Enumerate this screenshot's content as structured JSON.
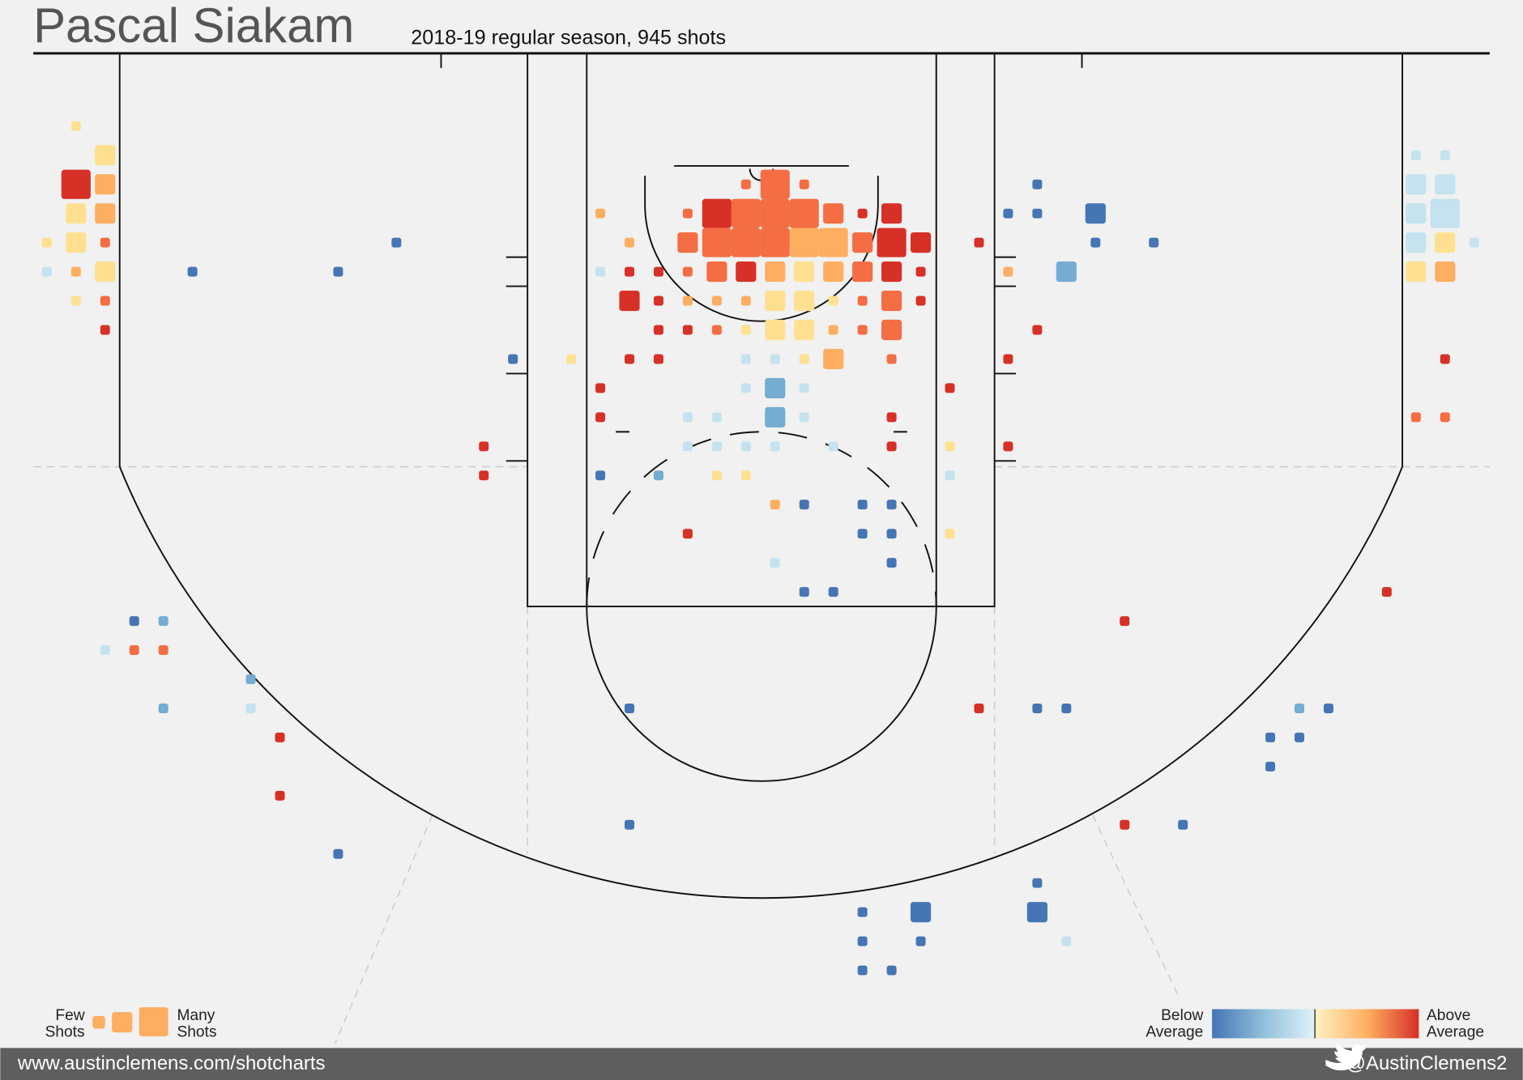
{
  "chart_data": {
    "type": "shotchart",
    "title": "Pascal Siakam",
    "subtitle": "2018-19 regular season, 945 shots",
    "legend": {
      "size_low": [
        "Few",
        "Shots"
      ],
      "size_high": [
        "Many",
        "Shots"
      ],
      "color_low": [
        "Below",
        "Average"
      ],
      "color_high": [
        "Above",
        "Average"
      ]
    },
    "footer": {
      "site": "www.austinclemens.com/shotcharts",
      "twitter": "@AustinClemens2"
    },
    "shots": [
      {
        "x": 1.5,
        "y": 2.5,
        "size": 1,
        "color": "#fee090"
      },
      {
        "x": 2.5,
        "y": 3.5,
        "size": 4,
        "color": "#fee090"
      },
      {
        "x": 1.5,
        "y": 4.5,
        "size": 8,
        "color": "#d73027"
      },
      {
        "x": 2.5,
        "y": 4.5,
        "size": 4,
        "color": "#fdae61"
      },
      {
        "x": 1.5,
        "y": 5.5,
        "size": 4,
        "color": "#fee090"
      },
      {
        "x": 2.5,
        "y": 5.5,
        "size": 4,
        "color": "#fdae61"
      },
      {
        "x": 0.5,
        "y": 6.5,
        "size": 1,
        "color": "#fee090"
      },
      {
        "x": 1.5,
        "y": 6.5,
        "size": 4,
        "color": "#fee090"
      },
      {
        "x": 2.5,
        "y": 6.5,
        "size": 1,
        "color": "#f46d43"
      },
      {
        "x": 0.5,
        "y": 7.5,
        "size": 1,
        "color": "#c4e2ef"
      },
      {
        "x": 1.5,
        "y": 7.5,
        "size": 1,
        "color": "#fdae61"
      },
      {
        "x": 2.5,
        "y": 7.5,
        "size": 4,
        "color": "#fee090"
      },
      {
        "x": 1.5,
        "y": 8.5,
        "size": 1,
        "color": "#fee090"
      },
      {
        "x": 2.5,
        "y": 8.5,
        "size": 1,
        "color": "#f46d43"
      },
      {
        "x": 2.5,
        "y": 9.5,
        "size": 1,
        "color": "#d73027"
      },
      {
        "x": 5.5,
        "y": 7.5,
        "size": 1,
        "color": "#4575b4"
      },
      {
        "x": 10.5,
        "y": 7.5,
        "size": 1,
        "color": "#4575b4"
      },
      {
        "x": 12.5,
        "y": 6.5,
        "size": 1,
        "color": "#4575b4"
      },
      {
        "x": 24.5,
        "y": 4.5,
        "size": 1,
        "color": "#f46d43"
      },
      {
        "x": 25.5,
        "y": 4.5,
        "size": 8,
        "color": "#f46d43"
      },
      {
        "x": 26.5,
        "y": 4.5,
        "size": 1,
        "color": "#f46d43"
      },
      {
        "x": 19.5,
        "y": 5.5,
        "size": 1,
        "color": "#fdae61"
      },
      {
        "x": 22.5,
        "y": 5.5,
        "size": 1,
        "color": "#f46d43"
      },
      {
        "x": 23.5,
        "y": 5.5,
        "size": 8,
        "color": "#d73027"
      },
      {
        "x": 24.5,
        "y": 5.5,
        "size": 8,
        "color": "#f46d43"
      },
      {
        "x": 25.5,
        "y": 5.5,
        "size": 8,
        "color": "#f46d43"
      },
      {
        "x": 26.5,
        "y": 5.5,
        "size": 8,
        "color": "#f46d43"
      },
      {
        "x": 27.5,
        "y": 5.5,
        "size": 4,
        "color": "#f46d43"
      },
      {
        "x": 28.5,
        "y": 5.5,
        "size": 1,
        "color": "#d73027"
      },
      {
        "x": 29.5,
        "y": 5.5,
        "size": 4,
        "color": "#d73027"
      },
      {
        "x": 20.5,
        "y": 6.5,
        "size": 1,
        "color": "#fdae61"
      },
      {
        "x": 22.5,
        "y": 6.5,
        "size": 4,
        "color": "#f46d43"
      },
      {
        "x": 23.5,
        "y": 6.5,
        "size": 8,
        "color": "#f46d43"
      },
      {
        "x": 24.5,
        "y": 6.5,
        "size": 8,
        "color": "#f46d43"
      },
      {
        "x": 25.5,
        "y": 6.5,
        "size": 8,
        "color": "#f46d43"
      },
      {
        "x": 26.5,
        "y": 6.5,
        "size": 8,
        "color": "#fdae61"
      },
      {
        "x": 27.5,
        "y": 6.5,
        "size": 8,
        "color": "#fdae61"
      },
      {
        "x": 28.5,
        "y": 6.5,
        "size": 4,
        "color": "#f46d43"
      },
      {
        "x": 29.5,
        "y": 6.5,
        "size": 8,
        "color": "#d73027"
      },
      {
        "x": 30.5,
        "y": 6.5,
        "size": 4,
        "color": "#d73027"
      },
      {
        "x": 32.5,
        "y": 6.5,
        "size": 1,
        "color": "#d73027"
      },
      {
        "x": 19.5,
        "y": 7.5,
        "size": 1,
        "color": "#c4e2ef"
      },
      {
        "x": 20.5,
        "y": 7.5,
        "size": 1,
        "color": "#d73027"
      },
      {
        "x": 21.5,
        "y": 7.5,
        "size": 1,
        "color": "#d73027"
      },
      {
        "x": 22.5,
        "y": 7.5,
        "size": 1,
        "color": "#f46d43"
      },
      {
        "x": 23.5,
        "y": 7.5,
        "size": 4,
        "color": "#f46d43"
      },
      {
        "x": 24.5,
        "y": 7.5,
        "size": 4,
        "color": "#d73027"
      },
      {
        "x": 25.5,
        "y": 7.5,
        "size": 4,
        "color": "#fdae61"
      },
      {
        "x": 26.5,
        "y": 7.5,
        "size": 4,
        "color": "#fee090"
      },
      {
        "x": 27.5,
        "y": 7.5,
        "size": 4,
        "color": "#fdae61"
      },
      {
        "x": 28.5,
        "y": 7.5,
        "size": 4,
        "color": "#f46d43"
      },
      {
        "x": 29.5,
        "y": 7.5,
        "size": 4,
        "color": "#d73027"
      },
      {
        "x": 30.5,
        "y": 7.5,
        "size": 1,
        "color": "#d73027"
      },
      {
        "x": 33.5,
        "y": 7.5,
        "size": 1,
        "color": "#fdae61"
      },
      {
        "x": 20.5,
        "y": 8.5,
        "size": 4,
        "color": "#d73027"
      },
      {
        "x": 21.5,
        "y": 8.5,
        "size": 1,
        "color": "#d73027"
      },
      {
        "x": 22.5,
        "y": 8.5,
        "size": 1,
        "color": "#fdae61"
      },
      {
        "x": 23.5,
        "y": 8.5,
        "size": 1,
        "color": "#fdae61"
      },
      {
        "x": 24.5,
        "y": 8.5,
        "size": 1,
        "color": "#fdae61"
      },
      {
        "x": 25.5,
        "y": 8.5,
        "size": 4,
        "color": "#fee090"
      },
      {
        "x": 26.5,
        "y": 8.5,
        "size": 4,
        "color": "#fee090"
      },
      {
        "x": 27.5,
        "y": 8.5,
        "size": 1,
        "color": "#fee090"
      },
      {
        "x": 28.5,
        "y": 8.5,
        "size": 1,
        "color": "#f46d43"
      },
      {
        "x": 29.5,
        "y": 8.5,
        "size": 4,
        "color": "#f46d43"
      },
      {
        "x": 30.5,
        "y": 8.5,
        "size": 1,
        "color": "#d73027"
      },
      {
        "x": 21.5,
        "y": 9.5,
        "size": 1,
        "color": "#d73027"
      },
      {
        "x": 22.5,
        "y": 9.5,
        "size": 1,
        "color": "#d73027"
      },
      {
        "x": 23.5,
        "y": 9.5,
        "size": 1,
        "color": "#f46d43"
      },
      {
        "x": 24.5,
        "y": 9.5,
        "size": 1,
        "color": "#fee090"
      },
      {
        "x": 25.5,
        "y": 9.5,
        "size": 4,
        "color": "#fee090"
      },
      {
        "x": 26.5,
        "y": 9.5,
        "size": 4,
        "color": "#fee090"
      },
      {
        "x": 27.5,
        "y": 9.5,
        "size": 1,
        "color": "#fdae61"
      },
      {
        "x": 28.5,
        "y": 9.5,
        "size": 1,
        "color": "#f46d43"
      },
      {
        "x": 29.5,
        "y": 9.5,
        "size": 4,
        "color": "#f46d43"
      },
      {
        "x": 34.5,
        "y": 9.5,
        "size": 1,
        "color": "#d73027"
      },
      {
        "x": 16.5,
        "y": 10.5,
        "size": 1,
        "color": "#4575b4"
      },
      {
        "x": 18.5,
        "y": 10.5,
        "size": 1,
        "color": "#fee090"
      },
      {
        "x": 20.5,
        "y": 10.5,
        "size": 1,
        "color": "#d73027"
      },
      {
        "x": 21.5,
        "y": 10.5,
        "size": 1,
        "color": "#d73027"
      },
      {
        "x": 24.5,
        "y": 10.5,
        "size": 1,
        "color": "#c4e2ef"
      },
      {
        "x": 25.5,
        "y": 10.5,
        "size": 1,
        "color": "#c4e2ef"
      },
      {
        "x": 26.5,
        "y": 10.5,
        "size": 1,
        "color": "#fee090"
      },
      {
        "x": 27.5,
        "y": 10.5,
        "size": 4,
        "color": "#fdae61"
      },
      {
        "x": 29.5,
        "y": 10.5,
        "size": 1,
        "color": "#f46d43"
      },
      {
        "x": 33.5,
        "y": 10.5,
        "size": 1,
        "color": "#d73027"
      },
      {
        "x": 19.5,
        "y": 11.5,
        "size": 1,
        "color": "#d73027"
      },
      {
        "x": 24.5,
        "y": 11.5,
        "size": 1,
        "color": "#c4e2ef"
      },
      {
        "x": 25.5,
        "y": 11.5,
        "size": 4,
        "color": "#74add1"
      },
      {
        "x": 26.5,
        "y": 11.5,
        "size": 1,
        "color": "#c4e2ef"
      },
      {
        "x": 31.5,
        "y": 11.5,
        "size": 1,
        "color": "#d73027"
      },
      {
        "x": 19.5,
        "y": 12.5,
        "size": 1,
        "color": "#d73027"
      },
      {
        "x": 22.5,
        "y": 12.5,
        "size": 1,
        "color": "#c4e2ef"
      },
      {
        "x": 23.5,
        "y": 12.5,
        "size": 1,
        "color": "#c4e2ef"
      },
      {
        "x": 25.5,
        "y": 12.5,
        "size": 4,
        "color": "#74add1"
      },
      {
        "x": 26.5,
        "y": 12.5,
        "size": 1,
        "color": "#c4e2ef"
      },
      {
        "x": 29.5,
        "y": 12.5,
        "size": 1,
        "color": "#d73027"
      },
      {
        "x": 15.5,
        "y": 13.5,
        "size": 1,
        "color": "#d73027"
      },
      {
        "x": 22.5,
        "y": 13.5,
        "size": 1,
        "color": "#c4e2ef"
      },
      {
        "x": 23.5,
        "y": 13.5,
        "size": 1,
        "color": "#c4e2ef"
      },
      {
        "x": 24.5,
        "y": 13.5,
        "size": 1,
        "color": "#c4e2ef"
      },
      {
        "x": 25.5,
        "y": 13.5,
        "size": 1,
        "color": "#c4e2ef"
      },
      {
        "x": 27.5,
        "y": 13.5,
        "size": 1,
        "color": "#c4e2ef"
      },
      {
        "x": 29.5,
        "y": 13.5,
        "size": 1,
        "color": "#d73027"
      },
      {
        "x": 31.5,
        "y": 13.5,
        "size": 1,
        "color": "#fee090"
      },
      {
        "x": 33.5,
        "y": 13.5,
        "size": 1,
        "color": "#d73027"
      },
      {
        "x": 15.5,
        "y": 14.5,
        "size": 1,
        "color": "#d73027"
      },
      {
        "x": 19.5,
        "y": 14.5,
        "size": 1,
        "color": "#4575b4"
      },
      {
        "x": 21.5,
        "y": 14.5,
        "size": 1,
        "color": "#74add1"
      },
      {
        "x": 23.5,
        "y": 14.5,
        "size": 1,
        "color": "#fee090"
      },
      {
        "x": 24.5,
        "y": 14.5,
        "size": 1,
        "color": "#fee090"
      },
      {
        "x": 31.5,
        "y": 14.5,
        "size": 1,
        "color": "#c4e2ef"
      },
      {
        "x": 25.5,
        "y": 15.5,
        "size": 1,
        "color": "#fdae61"
      },
      {
        "x": 26.5,
        "y": 15.5,
        "size": 1,
        "color": "#4575b4"
      },
      {
        "x": 28.5,
        "y": 15.5,
        "size": 1,
        "color": "#4575b4"
      },
      {
        "x": 29.5,
        "y": 15.5,
        "size": 1,
        "color": "#4575b4"
      },
      {
        "x": 22.5,
        "y": 16.5,
        "size": 1,
        "color": "#d73027"
      },
      {
        "x": 28.5,
        "y": 16.5,
        "size": 1,
        "color": "#4575b4"
      },
      {
        "x": 29.5,
        "y": 16.5,
        "size": 1,
        "color": "#4575b4"
      },
      {
        "x": 31.5,
        "y": 16.5,
        "size": 1,
        "color": "#fee090"
      },
      {
        "x": 25.5,
        "y": 17.5,
        "size": 1,
        "color": "#c4e2ef"
      },
      {
        "x": 29.5,
        "y": 17.5,
        "size": 1,
        "color": "#4575b4"
      },
      {
        "x": 26.5,
        "y": 18.5,
        "size": 1,
        "color": "#4575b4"
      },
      {
        "x": 27.5,
        "y": 18.5,
        "size": 1,
        "color": "#4575b4"
      },
      {
        "x": 46.5,
        "y": 18.5,
        "size": 1,
        "color": "#d73027"
      },
      {
        "x": 3.5,
        "y": 19.5,
        "size": 1,
        "color": "#4575b4"
      },
      {
        "x": 4.5,
        "y": 19.5,
        "size": 1,
        "color": "#74add1"
      },
      {
        "x": 37.5,
        "y": 19.5,
        "size": 1,
        "color": "#d73027"
      },
      {
        "x": 2.5,
        "y": 20.5,
        "size": 1,
        "color": "#c4e2ef"
      },
      {
        "x": 3.5,
        "y": 20.5,
        "size": 1,
        "color": "#f46d43"
      },
      {
        "x": 4.5,
        "y": 20.5,
        "size": 1,
        "color": "#f46d43"
      },
      {
        "x": 7.5,
        "y": 21.5,
        "size": 1,
        "color": "#74add1"
      },
      {
        "x": 4.5,
        "y": 22.5,
        "size": 1,
        "color": "#74add1"
      },
      {
        "x": 7.5,
        "y": 22.5,
        "size": 1,
        "color": "#c4e2ef"
      },
      {
        "x": 20.5,
        "y": 22.5,
        "size": 1,
        "color": "#4575b4"
      },
      {
        "x": 32.5,
        "y": 22.5,
        "size": 1,
        "color": "#d73027"
      },
      {
        "x": 34.5,
        "y": 22.5,
        "size": 1,
        "color": "#4575b4"
      },
      {
        "x": 35.5,
        "y": 22.5,
        "size": 1,
        "color": "#4575b4"
      },
      {
        "x": 43.5,
        "y": 22.5,
        "size": 1,
        "color": "#74add1"
      },
      {
        "x": 44.5,
        "y": 22.5,
        "size": 1,
        "color": "#4575b4"
      },
      {
        "x": 8.5,
        "y": 23.5,
        "size": 1,
        "color": "#d73027"
      },
      {
        "x": 42.5,
        "y": 23.5,
        "size": 1,
        "color": "#4575b4"
      },
      {
        "x": 43.5,
        "y": 23.5,
        "size": 1,
        "color": "#4575b4"
      },
      {
        "x": 42.5,
        "y": 24.5,
        "size": 1,
        "color": "#4575b4"
      },
      {
        "x": 8.5,
        "y": 25.5,
        "size": 1,
        "color": "#d73027"
      },
      {
        "x": 20.5,
        "y": 26.5,
        "size": 1,
        "color": "#4575b4"
      },
      {
        "x": 37.5,
        "y": 26.5,
        "size": 1,
        "color": "#d73027"
      },
      {
        "x": 39.5,
        "y": 26.5,
        "size": 1,
        "color": "#4575b4"
      },
      {
        "x": 10.5,
        "y": 27.5,
        "size": 1,
        "color": "#4575b4"
      },
      {
        "x": 34.5,
        "y": 28.5,
        "size": 1,
        "color": "#4575b4"
      },
      {
        "x": 28.5,
        "y": 29.5,
        "size": 1,
        "color": "#4575b4"
      },
      {
        "x": 30.5,
        "y": 29.5,
        "size": 4,
        "color": "#4575b4"
      },
      {
        "x": 34.5,
        "y": 29.5,
        "size": 4,
        "color": "#4575b4"
      },
      {
        "x": 28.5,
        "y": 30.5,
        "size": 1,
        "color": "#4575b4"
      },
      {
        "x": 30.5,
        "y": 30.5,
        "size": 1,
        "color": "#4575b4"
      },
      {
        "x": 35.5,
        "y": 30.5,
        "size": 1,
        "color": "#c4e2ef"
      },
      {
        "x": 28.5,
        "y": 31.5,
        "size": 1,
        "color": "#4575b4"
      },
      {
        "x": 29.5,
        "y": 31.5,
        "size": 1,
        "color": "#4575b4"
      },
      {
        "x": 47.5,
        "y": 3.5,
        "size": 1,
        "color": "#c4e2ef"
      },
      {
        "x": 48.5,
        "y": 3.5,
        "size": 1,
        "color": "#c4e2ef"
      },
      {
        "x": 34.5,
        "y": 4.5,
        "size": 1,
        "color": "#4575b4"
      },
      {
        "x": 47.5,
        "y": 4.5,
        "size": 4,
        "color": "#c4e2ef"
      },
      {
        "x": 48.5,
        "y": 4.5,
        "size": 4,
        "color": "#c4e2ef"
      },
      {
        "x": 33.5,
        "y": 5.5,
        "size": 1,
        "color": "#4575b4"
      },
      {
        "x": 34.5,
        "y": 5.5,
        "size": 1,
        "color": "#4575b4"
      },
      {
        "x": 36.5,
        "y": 5.5,
        "size": 4,
        "color": "#4575b4"
      },
      {
        "x": 47.5,
        "y": 5.5,
        "size": 4,
        "color": "#c4e2ef"
      },
      {
        "x": 48.5,
        "y": 5.5,
        "size": 8,
        "color": "#c4e2ef"
      },
      {
        "x": 36.5,
        "y": 6.5,
        "size": 1,
        "color": "#4575b4"
      },
      {
        "x": 38.5,
        "y": 6.5,
        "size": 1,
        "color": "#4575b4"
      },
      {
        "x": 47.5,
        "y": 6.5,
        "size": 4,
        "color": "#c4e2ef"
      },
      {
        "x": 48.5,
        "y": 6.5,
        "size": 4,
        "color": "#fee090"
      },
      {
        "x": 49.5,
        "y": 6.5,
        "size": 1,
        "color": "#c4e2ef"
      },
      {
        "x": 35.5,
        "y": 7.5,
        "size": 4,
        "color": "#74add1"
      },
      {
        "x": 47.5,
        "y": 7.5,
        "size": 4,
        "color": "#fee090"
      },
      {
        "x": 48.5,
        "y": 7.5,
        "size": 4,
        "color": "#fdae61"
      },
      {
        "x": 48.5,
        "y": 10.5,
        "size": 1,
        "color": "#d73027"
      },
      {
        "x": 47.5,
        "y": 12.5,
        "size": 1,
        "color": "#f46d43"
      },
      {
        "x": 48.5,
        "y": 12.5,
        "size": 1,
        "color": "#f46d43"
      }
    ]
  }
}
